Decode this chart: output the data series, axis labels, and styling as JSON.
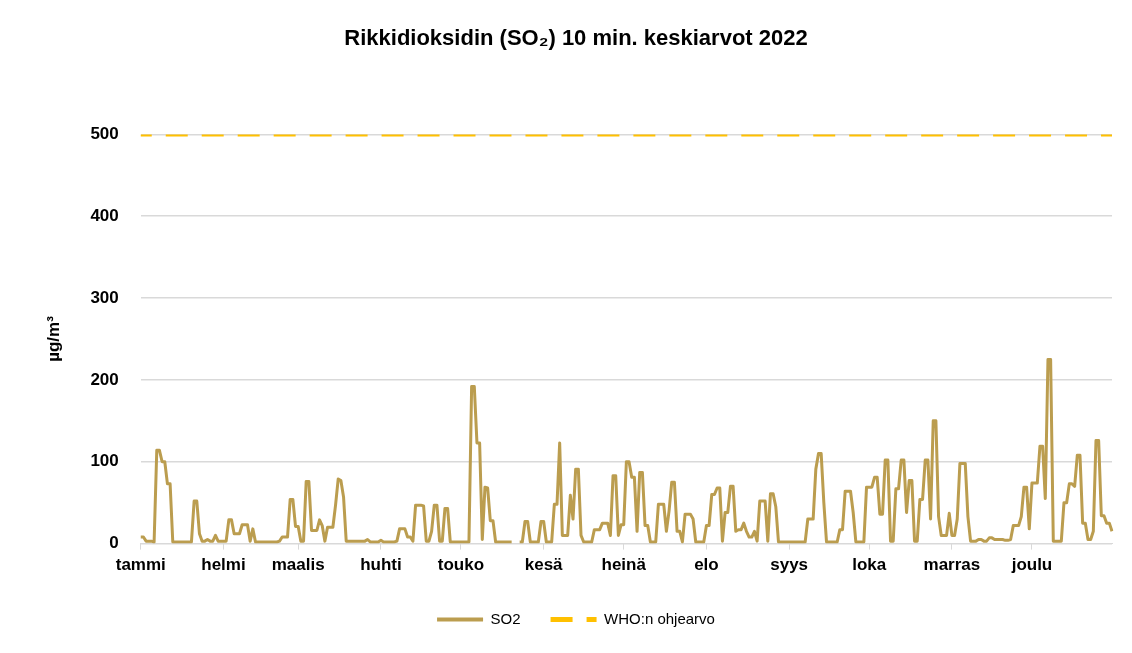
{
  "chart_data": {
    "type": "line",
    "title": "Rikkidioksidin (SO₂) 10 min. keskiarvot 2022",
    "ylabel": "µg/m³",
    "categories": [
      "tammi",
      null,
      null,
      null,
      null,
      null,
      null,
      null,
      null,
      null,
      null,
      null,
      null,
      null,
      null,
      null,
      null,
      null,
      null,
      null,
      null,
      null,
      null,
      null,
      null,
      null,
      null,
      null,
      null,
      null,
      null,
      "helmi",
      null,
      null,
      null,
      null,
      null,
      null,
      null,
      null,
      null,
      null,
      null,
      null,
      null,
      null,
      null,
      null,
      null,
      null,
      null,
      null,
      null,
      null,
      null,
      null,
      null,
      null,
      null,
      "maalis",
      null,
      null,
      null,
      null,
      null,
      null,
      null,
      null,
      null,
      null,
      null,
      null,
      null,
      null,
      null,
      null,
      null,
      null,
      null,
      null,
      null,
      null,
      null,
      null,
      null,
      null,
      null,
      null,
      null,
      null,
      "huhti",
      null,
      null,
      null,
      null,
      null,
      null,
      null,
      null,
      null,
      null,
      null,
      null,
      null,
      null,
      null,
      null,
      null,
      null,
      null,
      null,
      null,
      null,
      null,
      null,
      null,
      null,
      null,
      null,
      null,
      "touko",
      null,
      null,
      null,
      null,
      null,
      null,
      null,
      null,
      null,
      null,
      null,
      null,
      null,
      null,
      null,
      null,
      null,
      null,
      null,
      null,
      null,
      null,
      null,
      null,
      null,
      null,
      null,
      null,
      null,
      null,
      "kesä",
      null,
      null,
      null,
      null,
      null,
      null,
      null,
      null,
      null,
      null,
      null,
      null,
      null,
      null,
      null,
      null,
      null,
      null,
      null,
      null,
      null,
      null,
      null,
      null,
      null,
      null,
      null,
      null,
      null,
      "heinä",
      null,
      null,
      null,
      null,
      null,
      null,
      null,
      null,
      null,
      null,
      null,
      null,
      null,
      null,
      null,
      null,
      null,
      null,
      null,
      null,
      null,
      null,
      null,
      null,
      null,
      null,
      null,
      null,
      null,
      null,
      "elo",
      null,
      null,
      null,
      null,
      null,
      null,
      null,
      null,
      null,
      null,
      null,
      null,
      null,
      null,
      null,
      null,
      null,
      null,
      null,
      null,
      null,
      null,
      null,
      null,
      null,
      null,
      null,
      null,
      null,
      null,
      "syys",
      null,
      null,
      null,
      null,
      null,
      null,
      null,
      null,
      null,
      null,
      null,
      null,
      null,
      null,
      null,
      null,
      null,
      null,
      null,
      null,
      null,
      null,
      null,
      null,
      null,
      null,
      null,
      null,
      null,
      "loka",
      null,
      null,
      null,
      null,
      null,
      null,
      null,
      null,
      null,
      null,
      null,
      null,
      null,
      null,
      null,
      null,
      null,
      null,
      null,
      null,
      null,
      null,
      null,
      null,
      null,
      null,
      null,
      null,
      null,
      null,
      "marras",
      null,
      null,
      null,
      null,
      null,
      null,
      null,
      null,
      null,
      null,
      null,
      null,
      null,
      null,
      null,
      null,
      null,
      null,
      null,
      null,
      null,
      null,
      null,
      null,
      null,
      null,
      null,
      null,
      null,
      "joulu",
      null,
      null,
      null,
      null,
      null,
      null,
      null,
      null,
      null,
      null,
      null,
      null,
      null,
      null,
      null,
      null,
      null,
      null,
      null,
      null,
      null,
      null,
      null,
      null,
      null,
      null,
      null,
      null,
      null,
      null
    ],
    "ylim": [
      0,
      500
    ],
    "yticks": [
      0,
      100,
      200,
      300,
      400,
      500
    ],
    "grid": "y",
    "legend": "bottom",
    "marker": "none",
    "series": [
      {
        "name": "SO2",
        "color": "#bb9d4f",
        "line_style": "solid",
        "values": [
          8,
          8,
          3,
          3,
          3,
          2,
          114,
          114,
          100,
          100,
          73,
          73,
          2,
          2,
          2,
          2,
          2,
          2,
          2,
          2,
          52,
          52,
          12,
          3,
          3,
          5,
          3,
          3,
          10,
          3,
          3,
          3,
          3,
          29,
          29,
          12,
          12,
          12,
          23,
          23,
          23,
          3,
          18,
          2,
          2,
          2,
          2,
          2,
          2,
          2,
          2,
          2,
          3,
          8,
          8,
          8,
          54,
          54,
          21,
          21,
          3,
          3,
          76,
          76,
          16,
          16,
          16,
          29,
          22,
          3,
          20,
          20,
          20,
          47,
          79,
          77,
          57,
          3,
          3,
          3,
          3,
          3,
          3,
          3,
          3,
          5,
          2,
          2,
          2,
          2,
          4,
          2,
          2,
          2,
          2,
          2,
          3,
          18,
          18,
          18,
          8,
          8,
          3,
          47,
          47,
          47,
          46,
          3,
          3,
          15,
          47,
          47,
          3,
          3,
          43,
          43,
          2,
          2,
          2,
          2,
          2,
          2,
          2,
          2,
          192,
          192,
          123,
          123,
          5,
          69,
          68,
          28,
          28,
          2,
          2,
          2,
          2,
          2,
          2,
          2,
          null,
          null,
          2,
          2,
          27,
          27,
          2,
          2,
          2,
          2,
          27,
          27,
          2,
          2,
          2,
          48,
          48,
          123,
          10,
          10,
          10,
          59,
          30,
          91,
          91,
          10,
          2,
          2,
          2,
          2,
          17,
          17,
          17,
          25,
          25,
          25,
          10,
          83,
          83,
          10,
          23,
          23,
          100,
          100,
          81,
          81,
          15,
          87,
          87,
          22,
          22,
          2,
          2,
          2,
          48,
          48,
          48,
          15,
          40,
          75,
          75,
          15,
          15,
          2,
          36,
          36,
          36,
          30,
          2,
          2,
          2,
          2,
          22,
          22,
          60,
          60,
          68,
          68,
          3,
          38,
          38,
          70,
          70,
          15,
          17,
          17,
          25,
          15,
          8,
          8,
          15,
          3,
          52,
          52,
          52,
          3,
          61,
          61,
          45,
          2,
          2,
          2,
          2,
          2,
          2,
          2,
          2,
          2,
          2,
          2,
          30,
          30,
          30,
          91,
          110,
          110,
          50,
          2,
          2,
          2,
          2,
          2,
          17,
          17,
          64,
          64,
          64,
          38,
          2,
          2,
          2,
          2,
          69,
          69,
          69,
          81,
          81,
          36,
          36,
          102,
          102,
          3,
          3,
          67,
          67,
          102,
          102,
          38,
          77,
          77,
          3,
          3,
          54,
          54,
          102,
          102,
          30,
          150,
          150,
          33,
          10,
          10,
          10,
          37,
          10,
          10,
          30,
          98,
          98,
          98,
          33,
          3,
          3,
          3,
          5,
          5,
          3,
          3,
          7,
          7,
          5,
          5,
          5,
          5,
          4,
          4,
          5,
          22,
          22,
          22,
          33,
          69,
          69,
          18,
          74,
          74,
          74,
          119,
          119,
          55,
          225,
          225,
          3,
          3,
          3,
          3,
          50,
          50,
          73,
          73,
          70,
          108,
          108,
          25,
          25,
          5,
          5,
          15,
          126,
          126,
          34,
          34,
          25,
          25,
          15
        ]
      },
      {
        "name": "WHO:n ohjearvo",
        "color": "#ffc000",
        "line_style": "dashed",
        "values": [
          500,
          500,
          500,
          500,
          500,
          500,
          500,
          500,
          500,
          500,
          500,
          500,
          500,
          500,
          500,
          500,
          500,
          500,
          500,
          500,
          500,
          500,
          500,
          500,
          500,
          500,
          500,
          500,
          500,
          500,
          500,
          500,
          500,
          500,
          500,
          500,
          500,
          500,
          500,
          500,
          500,
          500,
          500,
          500,
          500,
          500,
          500,
          500,
          500,
          500,
          500,
          500,
          500,
          500,
          500,
          500,
          500,
          500,
          500,
          500,
          500,
          500,
          500,
          500,
          500,
          500,
          500,
          500,
          500,
          500,
          500,
          500,
          500,
          500,
          500,
          500,
          500,
          500,
          500,
          500,
          500,
          500,
          500,
          500,
          500,
          500,
          500,
          500,
          500,
          500,
          500,
          500,
          500,
          500,
          500,
          500,
          500,
          500,
          500,
          500,
          500,
          500,
          500,
          500,
          500,
          500,
          500,
          500,
          500,
          500,
          500,
          500,
          500,
          500,
          500,
          500,
          500,
          500,
          500,
          500,
          500,
          500,
          500,
          500,
          500,
          500,
          500,
          500,
          500,
          500,
          500,
          500,
          500,
          500,
          500,
          500,
          500,
          500,
          500,
          500,
          500,
          500,
          500,
          500,
          500,
          500,
          500,
          500,
          500,
          500,
          500,
          500,
          500,
          500,
          500,
          500,
          500,
          500,
          500,
          500,
          500,
          500,
          500,
          500,
          500,
          500,
          500,
          500,
          500,
          500,
          500,
          500,
          500,
          500,
          500,
          500,
          500,
          500,
          500,
          500,
          500,
          500,
          500,
          500,
          500,
          500,
          500,
          500,
          500,
          500,
          500,
          500,
          500,
          500,
          500,
          500,
          500,
          500,
          500,
          500,
          500,
          500,
          500,
          500,
          500,
          500,
          500,
          500,
          500,
          500,
          500,
          500,
          500,
          500,
          500,
          500,
          500,
          500,
          500,
          500,
          500,
          500,
          500,
          500,
          500,
          500,
          500,
          500,
          500,
          500,
          500,
          500,
          500,
          500,
          500,
          500,
          500,
          500,
          500,
          500,
          500,
          500,
          500,
          500,
          500,
          500,
          500,
          500,
          500,
          500,
          500,
          500,
          500,
          500,
          500,
          500,
          500,
          500,
          500,
          500,
          500,
          500,
          500,
          500,
          500,
          500,
          500,
          500,
          500,
          500,
          500,
          500,
          500,
          500,
          500,
          500,
          500,
          500,
          500,
          500,
          500,
          500,
          500,
          500,
          500,
          500,
          500,
          500,
          500,
          500,
          500,
          500,
          500,
          500,
          500,
          500,
          500,
          500,
          500,
          500,
          500,
          500,
          500,
          500,
          500,
          500,
          500,
          500,
          500,
          500,
          500,
          500,
          500,
          500,
          500,
          500,
          500,
          500,
          500,
          500,
          500,
          500,
          500,
          500,
          500,
          500,
          500,
          500,
          500,
          500,
          500,
          500,
          500,
          500,
          500,
          500,
          500,
          500,
          500,
          500,
          500,
          500,
          500,
          500,
          500,
          500,
          500,
          500,
          500,
          500,
          500,
          500,
          500,
          500,
          500,
          500,
          500,
          500,
          500,
          500,
          500,
          500,
          500,
          500,
          500
        ]
      }
    ]
  }
}
